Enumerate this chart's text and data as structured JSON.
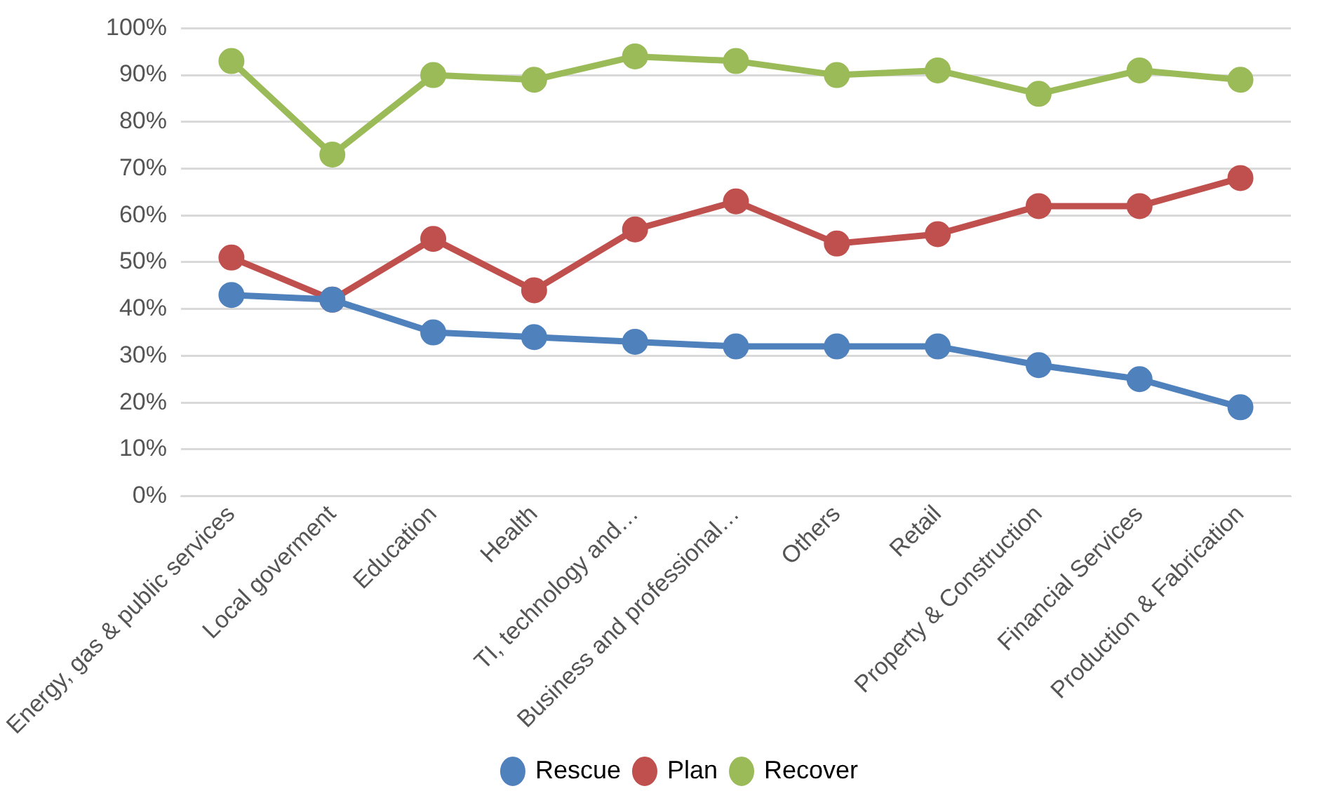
{
  "chart_data": {
    "type": "line",
    "categories": [
      "Energy, gas & public services",
      "Local goverment",
      "Education",
      "Health",
      "TI, technology and…",
      "Business and professional…",
      "Others",
      "Retail",
      "Property & Construction",
      "Financial Services",
      "Production & Fabrication"
    ],
    "series": [
      {
        "name": "Rescue",
        "color": "#4f81bd",
        "values": [
          43,
          42,
          35,
          34,
          33,
          32,
          32,
          32,
          28,
          25,
          19
        ]
      },
      {
        "name": "Plan",
        "color": "#c0504d",
        "values": [
          51,
          42,
          55,
          44,
          57,
          63,
          54,
          56,
          62,
          62,
          68
        ]
      },
      {
        "name": "Recover",
        "color": "#9bbb59",
        "values": [
          93,
          73,
          90,
          89,
          94,
          93,
          90,
          91,
          86,
          91,
          89
        ]
      }
    ],
    "ylim": [
      0,
      100
    ],
    "yticks": [
      {
        "value": 0,
        "label": "0%"
      },
      {
        "value": 10,
        "label": "10%"
      },
      {
        "value": 20,
        "label": "20%"
      },
      {
        "value": 30,
        "label": "30%"
      },
      {
        "value": 40,
        "label": "40%"
      },
      {
        "value": 50,
        "label": "50%"
      },
      {
        "value": 60,
        "label": "60%"
      },
      {
        "value": 70,
        "label": "70%"
      },
      {
        "value": 80,
        "label": "80%"
      },
      {
        "value": 90,
        "label": "90%"
      },
      {
        "value": 100,
        "label": "100%"
      }
    ],
    "grid": "y",
    "legend": "bottom",
    "marker": "circle",
    "line_style": "solid"
  }
}
